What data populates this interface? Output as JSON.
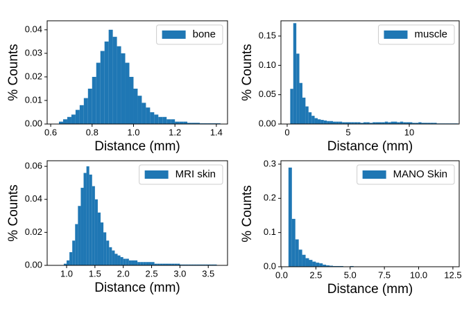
{
  "chart_data": [
    {
      "type": "histogram",
      "xlabel": "Distance (mm)",
      "ylabel": "% Counts",
      "legend": "upper right",
      "bins": [
        0.64,
        0.66,
        0.68,
        0.7,
        0.72,
        0.74,
        0.76,
        0.78,
        0.8,
        0.82,
        0.84,
        0.86,
        0.88,
        0.9,
        0.92,
        0.94,
        0.96,
        0.98,
        1.0,
        1.02,
        1.04,
        1.06,
        1.08,
        1.1,
        1.12,
        1.14,
        1.16,
        1.18,
        1.2,
        1.22,
        1.24,
        1.26,
        1.28,
        1.3,
        1.32,
        1.34,
        1.36,
        1.38,
        1.4,
        1.42
      ],
      "series": [
        {
          "name": "bone",
          "color": "#1f77b4",
          "values": [
            0.001,
            0.002,
            0.003,
            0.004,
            0.006,
            0.008,
            0.011,
            0.015,
            0.02,
            0.026,
            0.031,
            0.035,
            0.04,
            0.037,
            0.033,
            0.03,
            0.026,
            0.02,
            0.015,
            0.012,
            0.009,
            0.007,
            0.005,
            0.004,
            0.003,
            0.003,
            0.002,
            0.002,
            0.001,
            0.001,
            0.001,
            0.0005,
            0.0005,
            0.0005,
            0.0003,
            0.0003,
            0.0003,
            0.0003,
            0.0003
          ]
        }
      ],
      "xlim": [
        0.583,
        1.454
      ],
      "xticks": [
        0.6,
        0.8,
        {
          "value": 1,
          "label": "1.0"
        },
        1.2,
        1.4
      ],
      "ylim": [
        0,
        0.0438
      ],
      "yticks": [
        {
          "value": 0,
          "label": "0.00"
        },
        0.01,
        0.02,
        0.03,
        0.04
      ]
    },
    {
      "type": "histogram",
      "xlabel": "Distance (mm)",
      "ylabel": "% Counts",
      "legend": "upper right",
      "bins": [
        0.25,
        0.5,
        0.75,
        1.0,
        1.25,
        1.5,
        1.75,
        2.0,
        2.25,
        2.5,
        2.75,
        3.0,
        3.25,
        3.5,
        3.75,
        4.0,
        4.25,
        4.5,
        4.75,
        5.0,
        5.25,
        5.5,
        5.75,
        6.0,
        6.25,
        6.5,
        6.75,
        7.0,
        7.25,
        7.5,
        7.75,
        8.0,
        8.25,
        8.5,
        8.75,
        9.0,
        9.25,
        9.5,
        9.75,
        10.0,
        10.25,
        10.5,
        10.75,
        11.0,
        11.25,
        11.5,
        11.75,
        12.0,
        12.25,
        12.5,
        12.75,
        13.0,
        13.25,
        13.5,
        13.75,
        14.0
      ],
      "series": [
        {
          "name": "muscle",
          "color": "#1f77b4",
          "values": [
            0.06,
            0.172,
            0.12,
            0.07,
            0.045,
            0.03,
            0.02,
            0.014,
            0.01,
            0.008,
            0.007,
            0.006,
            0.005,
            0.005,
            0.004,
            0.004,
            0.004,
            0.003,
            0.003,
            0.003,
            0.003,
            0.003,
            0.003,
            0.002,
            0.003,
            0.003,
            0.002,
            0.003,
            0.003,
            0.003,
            0.003,
            0.004,
            0.003,
            0.004,
            0.004,
            0.003,
            0.004,
            0.003,
            0.003,
            0.003,
            0.002,
            0.002,
            0.003,
            0.002,
            0.002,
            0.002,
            0.002,
            0.002,
            0.001,
            0.001,
            0.001,
            0.001,
            0.001,
            0.001,
            0.001
          ]
        }
      ],
      "xlim": [
        -0.51,
        14.09
      ],
      "xticks": [
        0,
        5,
        10
      ],
      "ylim": [
        0,
        0.176
      ],
      "yticks": [
        {
          "value": 0,
          "label": "0.00"
        },
        0.05,
        {
          "value": 0.1,
          "label": "0.10"
        },
        0.15
      ]
    },
    {
      "type": "histogram",
      "xlabel": "Distance (mm)",
      "ylabel": "% Counts",
      "legend": "upper right",
      "bins": [
        0.95,
        1.0,
        1.05,
        1.1,
        1.15,
        1.2,
        1.25,
        1.3,
        1.35,
        1.4,
        1.45,
        1.5,
        1.55,
        1.6,
        1.65,
        1.7,
        1.75,
        1.8,
        1.85,
        1.9,
        1.95,
        2.0,
        2.05,
        2.1,
        2.15,
        2.2,
        2.25,
        2.3,
        2.35,
        2.4,
        2.45,
        2.5,
        2.55,
        2.6,
        2.65,
        2.7,
        2.75,
        2.8,
        2.85,
        2.9,
        2.95,
        3.0,
        3.05,
        3.1,
        3.15,
        3.2,
        3.25,
        3.3,
        3.35,
        3.4,
        3.45,
        3.5,
        3.55,
        3.6,
        3.65
      ],
      "series": [
        {
          "name": "MRI skin",
          "color": "#1f77b4",
          "values": [
            0.001,
            0.003,
            0.008,
            0.015,
            0.025,
            0.036,
            0.047,
            0.056,
            0.06,
            0.055,
            0.048,
            0.04,
            0.032,
            0.026,
            0.02,
            0.015,
            0.011,
            0.009,
            0.007,
            0.006,
            0.005,
            0.004,
            0.004,
            0.003,
            0.003,
            0.003,
            0.002,
            0.002,
            0.002,
            0.002,
            0.002,
            0.002,
            0.001,
            0.001,
            0.001,
            0.001,
            0.001,
            0.001,
            0.001,
            0.001,
            0.001,
            0.0005,
            0.0005,
            0.0005,
            0.0005,
            0.0005,
            0.0005,
            0.0005,
            0.0005,
            0.0005,
            0.0005,
            0.0005,
            0.0005,
            0.0005
          ]
        }
      ],
      "xlim": [
        0.657,
        3.84
      ],
      "xticks": [
        {
          "value": 1,
          "label": "1.0"
        },
        1.5,
        {
          "value": 2,
          "label": "2.0"
        },
        2.5,
        {
          "value": 3,
          "label": "3.0"
        },
        3.5
      ],
      "ylim": [
        0,
        0.0634
      ],
      "yticks": [
        {
          "value": 0,
          "label": "0.00"
        },
        0.02,
        0.04,
        0.06
      ]
    },
    {
      "type": "histogram",
      "xlabel": "Distance (mm)",
      "ylabel": "% Counts",
      "legend": "upper right",
      "bins": [
        0.5,
        0.75,
        1.0,
        1.25,
        1.5,
        1.75,
        2.0,
        2.25,
        2.5,
        2.75,
        3.0,
        3.25,
        3.5,
        3.75,
        4.0,
        4.25,
        4.5,
        4.75,
        5.0,
        5.25,
        5.5,
        5.75,
        6.0,
        6.25,
        6.5,
        6.75,
        7.0,
        7.25,
        7.5,
        7.75,
        8.0,
        8.25,
        8.5,
        8.75,
        9.0,
        9.25,
        9.5,
        9.75,
        10.0,
        10.25,
        10.5,
        10.75,
        11.0,
        11.25,
        11.5,
        11.75,
        12.0,
        12.25,
        12.5
      ],
      "series": [
        {
          "name": "MANO Skin",
          "color": "#1f77b4",
          "values": [
            0.29,
            0.14,
            0.08,
            0.05,
            0.035,
            0.025,
            0.02,
            0.015,
            0.012,
            0.01,
            0.006,
            0.004,
            0.003,
            0.002,
            0.002,
            0.002,
            0.001,
            0.001,
            0.002,
            0.001,
            0.001,
            0.001,
            0.001,
            0.001,
            0.001,
            0.001,
            0.001,
            0.0005,
            0.0005,
            0.0005,
            0.0005,
            0.0005,
            0.0005,
            0.0005,
            0.0002,
            0.0002,
            0.0002,
            0.0002,
            0.0002,
            0.0002,
            0.0002,
            0.0002,
            0.0002,
            0.0002,
            0.0002,
            0.0002,
            0.0002,
            0.0002
          ]
        }
      ],
      "xlim": [
        -0.05,
        12.96
      ],
      "xticks": [
        {
          "value": 0,
          "label": "0.0"
        },
        2.5,
        {
          "value": 5,
          "label": "5.0"
        },
        {
          "value": 7.5,
          "label": "7.5"
        },
        {
          "value": 10,
          "label": "10.0"
        },
        12.5
      ],
      "ylim": [
        0,
        0.31
      ],
      "yticks": [
        {
          "value": 0,
          "label": "0.0"
        },
        0.1,
        0.2,
        0.3
      ]
    }
  ]
}
